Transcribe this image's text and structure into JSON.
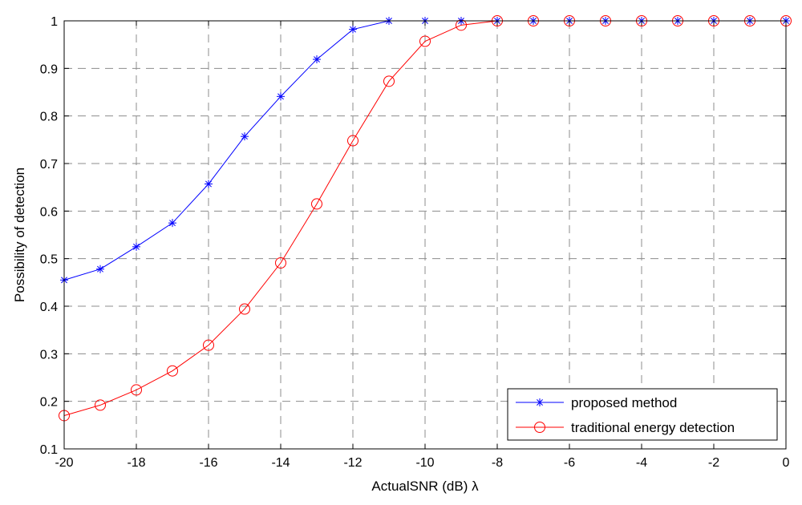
{
  "chart_data": {
    "type": "line",
    "title": "",
    "xlabel": "ActualSNR (dB) λ",
    "ylabel": "Possibility of detection",
    "xlim": [
      -20,
      0
    ],
    "ylim": [
      0.1,
      1.0
    ],
    "xticks": [
      -20,
      -18,
      -16,
      -14,
      -12,
      -10,
      -8,
      -6,
      -4,
      -2,
      0
    ],
    "yticks": [
      0.1,
      0.2,
      0.3,
      0.4,
      0.5,
      0.6,
      0.7,
      0.8,
      0.9,
      1.0
    ],
    "xtick_labels": [
      "-20",
      "-18",
      "-16",
      "-14",
      "-12",
      "-10",
      "-8",
      "-6",
      "-4",
      "-2",
      "0"
    ],
    "ytick_labels": [
      "0.1",
      "0.2",
      "0.3",
      "0.4",
      "0.5",
      "0.6",
      "0.7",
      "0.8",
      "0.9",
      "1"
    ],
    "grid": true,
    "legend_position": "bottom-right",
    "x": [
      -20,
      -19,
      -18,
      -17,
      -16,
      -15,
      -14,
      -13,
      -12,
      -11,
      -10,
      -9,
      -8,
      -7,
      -6,
      -5,
      -4,
      -3,
      -2,
      -1,
      0
    ],
    "series": [
      {
        "name": "proposed method",
        "color": "#0000ff",
        "marker": "star",
        "values": [
          0.455,
          0.478,
          0.525,
          0.575,
          0.657,
          0.757,
          0.841,
          0.919,
          0.982,
          1.0,
          1.0,
          1.0,
          1.0,
          1.0,
          1.0,
          1.0,
          1.0,
          1.0,
          1.0,
          1.0,
          1.0
        ]
      },
      {
        "name": "traditional energy detection",
        "color": "#ff0000",
        "marker": "circle",
        "values": [
          0.17,
          0.192,
          0.224,
          0.264,
          0.318,
          0.394,
          0.491,
          0.615,
          0.748,
          0.873,
          0.957,
          0.991,
          1.0,
          1.0,
          1.0,
          1.0,
          1.0,
          1.0,
          1.0,
          1.0,
          1.0
        ]
      }
    ]
  }
}
